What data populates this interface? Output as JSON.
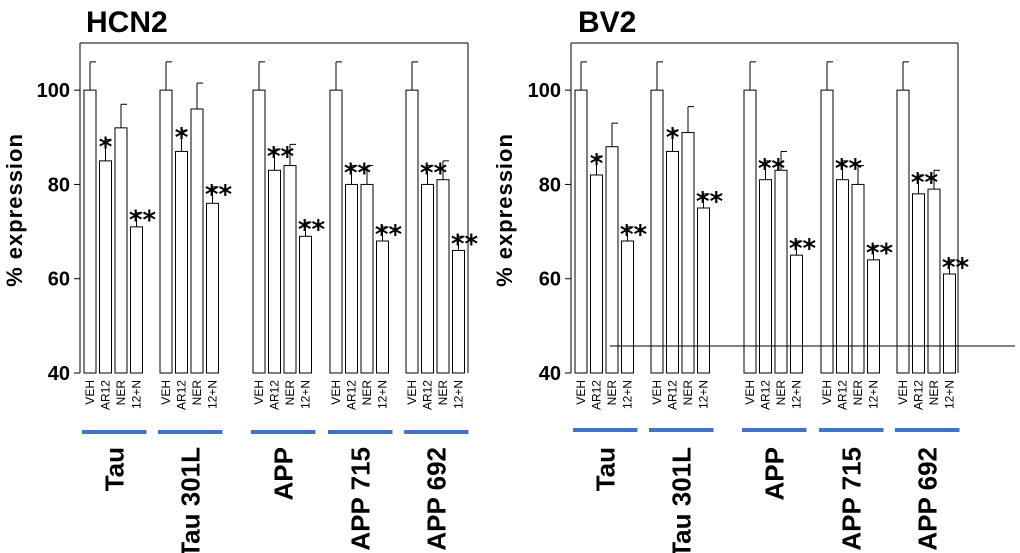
{
  "chart_data": [
    {
      "type": "bar",
      "title": "HCN2",
      "xlabel": "",
      "ylabel": "% expression",
      "ylim": [
        40,
        110
      ],
      "yticks": [
        40,
        60,
        80,
        100
      ],
      "conditions": [
        "VEH",
        "AR12",
        "NER",
        "12+N"
      ],
      "groups": [
        {
          "name": "Tau",
          "values": [
            100,
            85,
            92,
            71
          ],
          "errors": [
            6,
            4.5,
            5,
            3
          ],
          "stars": [
            "",
            "*",
            "",
            "**"
          ]
        },
        {
          "name": "Tau 301L",
          "values": [
            100,
            87,
            96,
            76
          ],
          "errors": [
            6,
            4.5,
            5.5,
            3.5
          ],
          "stars": [
            "",
            "*",
            "",
            "**"
          ]
        },
        {
          "name": "APP",
          "values": [
            100,
            83,
            84,
            69
          ],
          "errors": [
            6,
            4.5,
            4.5,
            3
          ],
          "stars": [
            "",
            "**",
            "",
            "**"
          ]
        },
        {
          "name": "APP 715",
          "values": [
            100,
            80,
            80,
            68
          ],
          "errors": [
            6,
            4,
            4,
            3
          ],
          "stars": [
            "",
            "**",
            "",
            "**"
          ]
        },
        {
          "name": "APP 692",
          "values": [
            100,
            80,
            81,
            66
          ],
          "errors": [
            6,
            4,
            4,
            3
          ],
          "stars": [
            "",
            "**",
            "",
            "**"
          ]
        }
      ]
    },
    {
      "type": "bar",
      "title": "BV2",
      "xlabel": "",
      "ylabel": "% expression",
      "ylim": [
        40,
        110
      ],
      "yticks": [
        40,
        60,
        80,
        100
      ],
      "conditions": [
        "VEH",
        "AR12",
        "NER",
        "12+N"
      ],
      "groups": [
        {
          "name": "Tau",
          "values": [
            100,
            82,
            88,
            68
          ],
          "errors": [
            6,
            4,
            5,
            3
          ],
          "stars": [
            "",
            "*",
            "",
            "**"
          ]
        },
        {
          "name": "Tau 301L",
          "values": [
            100,
            87,
            91,
            75
          ],
          "errors": [
            6,
            4.5,
            5.5,
            3
          ],
          "stars": [
            "",
            "*",
            "",
            "**"
          ]
        },
        {
          "name": "APP",
          "values": [
            100,
            81,
            83,
            65
          ],
          "errors": [
            6,
            4,
            4,
            3
          ],
          "stars": [
            "",
            "**",
            "",
            "**"
          ]
        },
        {
          "name": "APP 715",
          "values": [
            100,
            81,
            80,
            64
          ],
          "errors": [
            6,
            4,
            4,
            3
          ],
          "stars": [
            "",
            "**",
            "",
            "**"
          ]
        },
        {
          "name": "APP 692",
          "values": [
            100,
            78,
            79,
            61
          ],
          "errors": [
            6,
            4,
            4,
            3
          ],
          "stars": [
            "",
            "**",
            "",
            "**"
          ]
        }
      ]
    }
  ],
  "colors": {
    "underline": "#4472C4",
    "bar_fill": "#ffffff",
    "stroke": "#000000"
  }
}
